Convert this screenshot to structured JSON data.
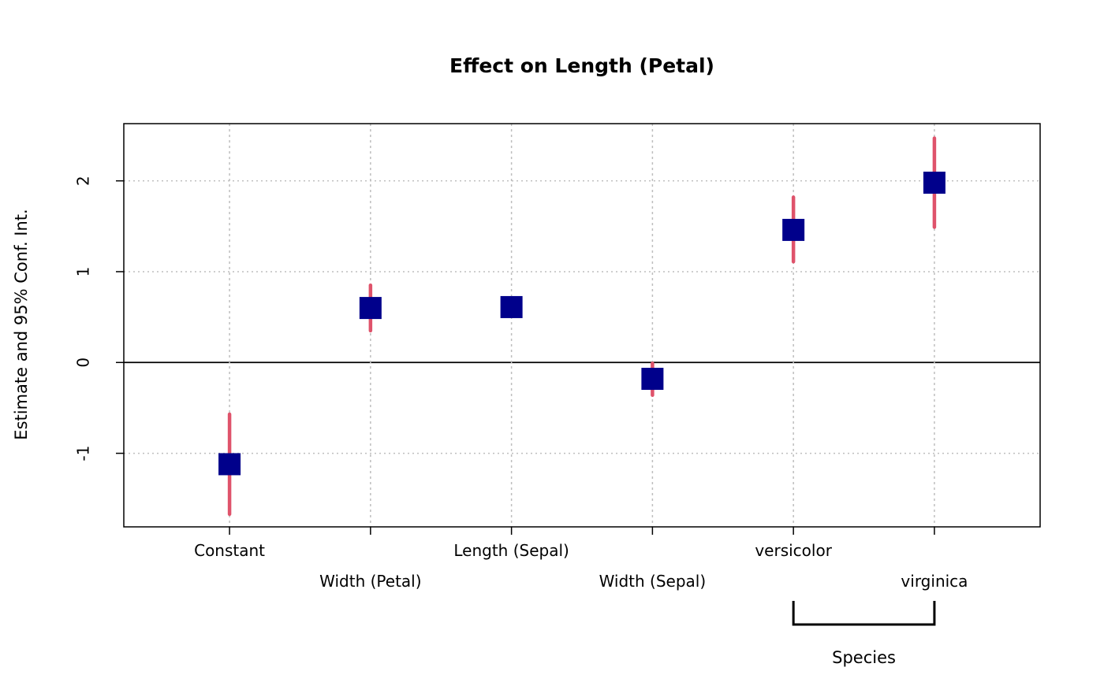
{
  "chart_data": {
    "type": "scatter",
    "title": "Effect on Length (Petal)",
    "xlabel": "",
    "ylabel": "Estimate and 95% Conf. Int.",
    "categories": [
      "Constant",
      "Width (Petal)",
      "Length (Sepal)",
      "Width (Sepal)",
      "versicolor",
      "virginica"
    ],
    "estimates": [
      -1.12,
      0.6,
      0.61,
      -0.18,
      1.46,
      1.98
    ],
    "ci_lower": [
      -1.67,
      0.35,
      0.56,
      -0.36,
      1.11,
      1.49
    ],
    "ci_upper": [
      -0.57,
      0.85,
      0.66,
      -0.01,
      1.82,
      2.47
    ],
    "ylim": [
      -1.81,
      2.63
    ],
    "xlim": [
      0.25,
      6.75
    ],
    "yticks": [
      "-1",
      "0",
      "1",
      "2"
    ],
    "ytick_values": [
      -1,
      0,
      1,
      2
    ],
    "grid": true,
    "reference_line": 0,
    "group_label": "Species",
    "group_members": [
      5,
      6
    ],
    "colors": {
      "point": "#00008b",
      "ci": "#df536b",
      "grid": "#bebebe"
    }
  }
}
